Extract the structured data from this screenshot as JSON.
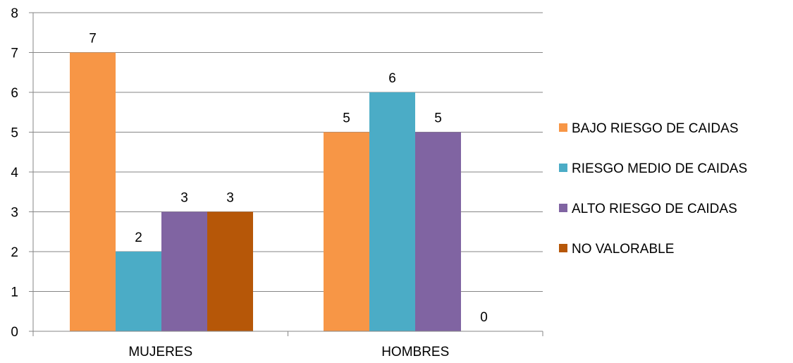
{
  "chart_data": {
    "type": "bar",
    "title": "",
    "xlabel": "",
    "ylabel": "",
    "categories": [
      "MUJERES",
      "HOMBRES"
    ],
    "series": [
      {
        "name": "BAJO RIESGO DE CAIDAS",
        "values": [
          7,
          5
        ],
        "color": "#F79646"
      },
      {
        "name": "RIESGO MEDIO DE CAIDAS",
        "values": [
          2,
          6
        ],
        "color": "#4BACC6"
      },
      {
        "name": "ALTO RIESGO DE CAIDAS",
        "values": [
          3,
          5
        ],
        "color": "#8064A2"
      },
      {
        "name": "NO VALORABLE",
        "values": [
          3,
          0
        ],
        "color": "#B65708"
      }
    ],
    "ylim": [
      0,
      8
    ],
    "yticks": [
      0,
      1,
      2,
      3,
      4,
      5,
      6,
      7,
      8
    ],
    "grid": true,
    "gridColor": "#868686",
    "axisColor": "#868686",
    "legend": "right",
    "data_labels": true
  }
}
